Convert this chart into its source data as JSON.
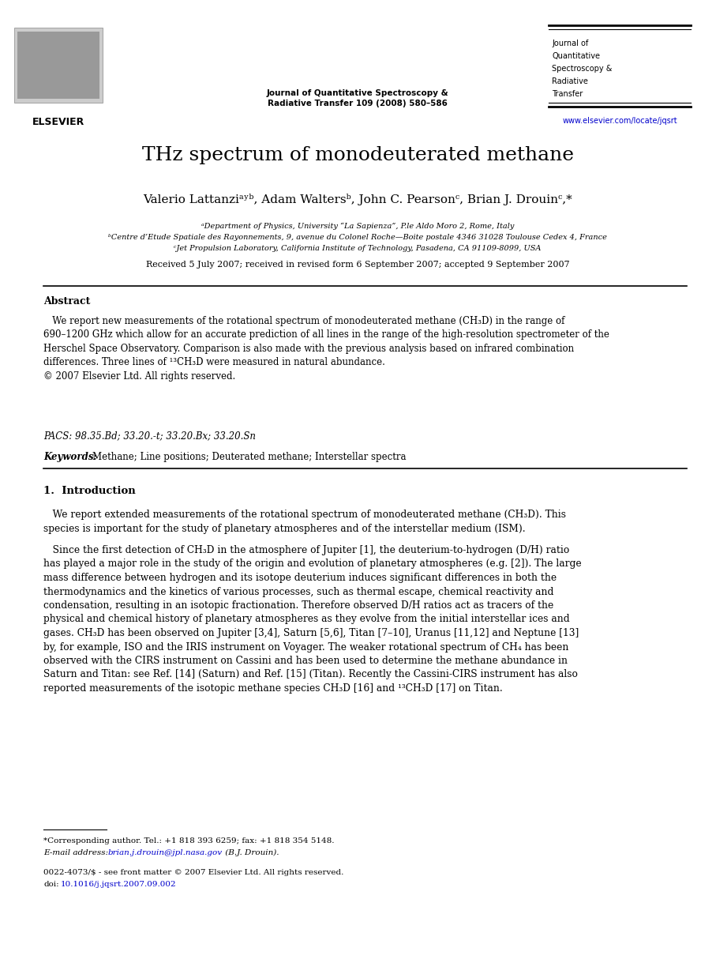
{
  "journal_center_line1": "Journal of Quantitative Spectroscopy &",
  "journal_center_line2": "Radiative Transfer 109 (2008) 580–586",
  "journal_right_lines": [
    "Journal of",
    "Quantitative",
    "Spectroscopy &",
    "Radiative",
    "Transfer"
  ],
  "journal_url": "www.elsevier.com/locate/jqsrt",
  "paper_title": "THz spectrum of monodeuterated methane",
  "authors": "Valerio Lattanziᵃʸᵇ, Adam Waltersᵇ, John C. Pearsonᶜ, Brian J. Drouinᶜ,*",
  "affil_a": "ᵃDepartment of Physics, University “La Sapienza”, P.le Aldo Moro 2, Rome, Italy",
  "affil_b": "ᵇCentre d’Etude Spatiale des Rayonnements, 9, avenue du Colonel Roche—Boite postale 4346 31028 Toulouse Cedex 4, France",
  "affil_c": "ᶜJet Propulsion Laboratory, California Institute of Technology, Pasadena, CA 91109-8099, USA",
  "received": "Received 5 July 2007; received in revised form 6 September 2007; accepted 9 September 2007",
  "abstract_title": "Abstract",
  "abstract_body": "   We report new measurements of the rotational spectrum of monodeuterated methane (CH₃D) in the range of\n690–1200 GHz which allow for an accurate prediction of all lines in the range of the high-resolution spectrometer of the\nHerschel Space Observatory. Comparison is also made with the previous analysis based on infrared combination\ndifferences. Three lines of ¹³CH₃D were measured in natural abundance.\n© 2007 Elsevier Ltd. All rights reserved.",
  "pacs": "PACS: 98.35.Bd; 33.20.-t; 33.20.Bx; 33.20.Sn",
  "kw_label": "Keywords: ",
  "kw_body": "Methane; Line positions; Deuterated methane; Interstellar spectra",
  "section1_title": "1.  Introduction",
  "intro_p1": "   We report extended measurements of the rotational spectrum of monodeuterated methane (CH₃D). This\nspecies is important for the study of planetary atmospheres and of the interstellar medium (ISM).",
  "intro_p2_indent": "   Since the first detection of CH₃D in the atmosphere of Jupiter [1], the deuterium-to-hydrogen (D/H) ratio\nhas played a major role in the study of the origin and evolution of planetary atmospheres (e.g. [2]). The large\nmass difference between hydrogen and its isotope deuterium induces significant differences in both the\nthermodynamics and the kinetics of various processes, such as thermal escape, chemical reactivity and\ncondensation, resulting in an isotopic fractionation. Therefore observed D/H ratios act as tracers of the\nphysical and chemical history of planetary atmospheres as they evolve from the initial interstellar ices and\ngases. CH₃D has been observed on Jupiter [3,4], Saturn [5,6], Titan [7–10], Uranus [11,12] and Neptune [13]\nby, for example, ISO and the IRIS instrument on Voyager. The weaker rotational spectrum of CH₄ has been\nobserved with the CIRS instrument on Cassini and has been used to determine the methane abundance in\nSaturn and Titan: see Ref. [14] (Saturn) and Ref. [15] (Titan). Recently the Cassini-CIRS instrument has also\nreported measurements of the isotopic methane species CH₃D [16] and ¹³CH₃D [17] on Titan.",
  "fn_star": "*Corresponding author. Tel.: +1 818 393 6259; fax: +1 818 354 5148.",
  "fn_email_label": "E-mail address: ",
  "fn_email_link": "brian.j.drouin@jpl.nasa.gov",
  "fn_email_tail": " (B.J. Drouin).",
  "copy1": "0022-4073/$ - see front matter © 2007 Elsevier Ltd. All rights reserved.",
  "copy2_pre": "doi:",
  "copy2_link": "10.1016/j.jqsrt.2007.09.002",
  "bg_color": "#ffffff",
  "text_color": "#000000",
  "link_color": "#0000cc"
}
